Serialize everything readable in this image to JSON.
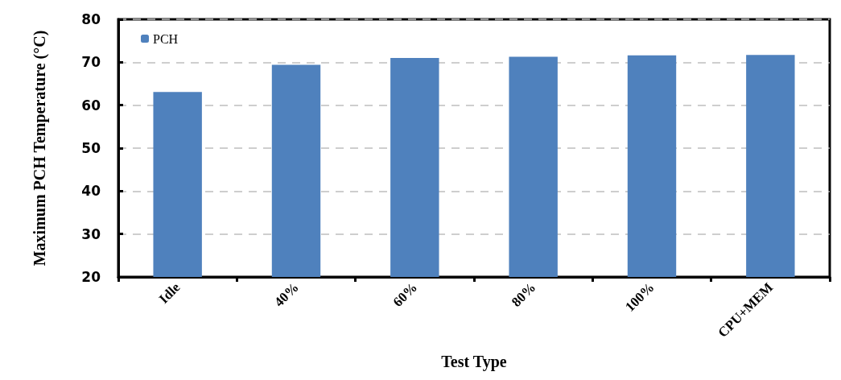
{
  "chart_data": {
    "type": "bar",
    "xlabel": "Test Type",
    "ylabel": "Maximum PCH Temperature (°C)",
    "categories": [
      "Idle",
      "40%",
      "60%",
      "80%",
      "100%",
      "CPU+MEM"
    ],
    "series": [
      {
        "name": "PCH",
        "color": "#4f81bd",
        "values": [
          63.1,
          69.4,
          71.0,
          71.3,
          71.6,
          71.7
        ]
      }
    ],
    "ylim": [
      20,
      80
    ],
    "yticks": [
      20,
      30,
      40,
      50,
      60,
      70,
      80
    ],
    "grid": "y",
    "legend": "top left"
  }
}
